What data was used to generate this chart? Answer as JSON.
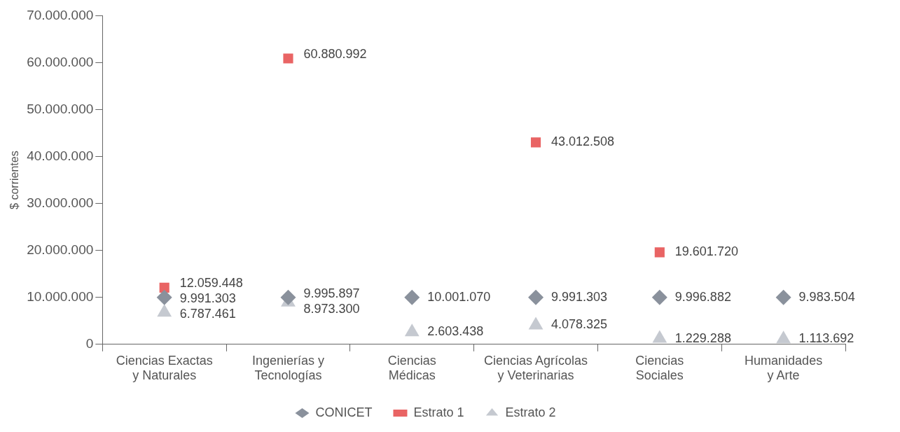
{
  "chart_data": {
    "type": "scatter",
    "ylabel": "$ corrientes",
    "categories": [
      "Ciencias Exactas y Naturales",
      "Ingenierías y Tecnologías",
      "Ciencias Médicas",
      "Ciencias Agrícolas y Veterinarias",
      "Ciencias Sociales",
      "Humanidades y Arte"
    ],
    "series": [
      {
        "name": "CONICET",
        "color": "#8a919c",
        "marker": "diamond",
        "values": [
          9991303,
          9995897,
          10001070,
          9991303,
          9996882,
          9983504
        ],
        "value_labels": [
          "9.991.303",
          "9.995.897",
          "10.001.070",
          "9.991.303",
          "9.996.882",
          "9.983.504"
        ]
      },
      {
        "name": "Estrato 1",
        "color": "#e96464",
        "marker": "square",
        "values": [
          12059448,
          60880992,
          null,
          43012508,
          19601720,
          null
        ],
        "value_labels": [
          "12.059.448",
          "60.880.992",
          null,
          "43.012.508",
          "19.601.720",
          null
        ]
      },
      {
        "name": "Estrato 2",
        "color": "#c5c9d0",
        "marker": "triangle",
        "values": [
          6787461,
          8973300,
          2603438,
          4078325,
          1229288,
          1113692
        ],
        "value_labels": [
          "6.787.461",
          "8.973.300",
          "2.603.438",
          "4.078.325",
          "1.229.288",
          "1.113.692"
        ]
      }
    ],
    "ylim": [
      0,
      70000000
    ],
    "yticks": [
      0,
      {
        "value": 10000000,
        "label": "10.000.000"
      },
      {
        "value": 20000000,
        "label": "20.000.000"
      },
      {
        "value": 30000000,
        "label": "30.000.000"
      },
      {
        "value": 40000000,
        "label": "40.000.000"
      },
      {
        "value": 50000000,
        "label": "50.000.000"
      },
      {
        "value": 60000000,
        "label": "60.000.000"
      },
      {
        "value": 70000000,
        "label": "70.000.000"
      }
    ],
    "grid": false,
    "legend": "bottom"
  }
}
